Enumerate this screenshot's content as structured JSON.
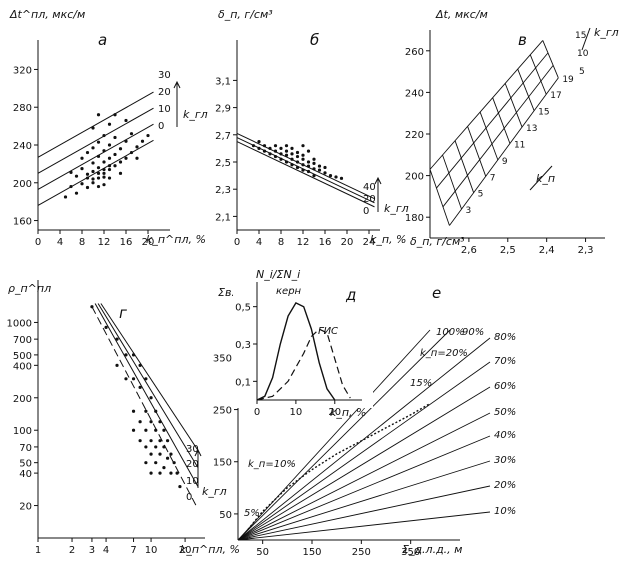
{
  "panels": {
    "a": {
      "letter": "а",
      "ylabel": "Δt^пл, мкс/м",
      "xlabel": "k_п^пл, %",
      "yticks": [
        "320",
        "280",
        "240",
        "200",
        "160"
      ],
      "xticks": [
        "0",
        "4",
        "8",
        "12",
        "16",
        "20"
      ],
      "line_labels": [
        "30",
        "20",
        "10",
        "0"
      ],
      "param": "k_гл"
    },
    "b": {
      "letter": "б",
      "ylabel": "δ_п, г/см³",
      "xlabel": "k_п, %",
      "yticks": [
        "3,1",
        "2,9",
        "2,7",
        "2,5",
        "2,3",
        "2,1"
      ],
      "xticks": [
        "0",
        "4",
        "8",
        "12",
        "16",
        "20",
        "24"
      ],
      "line_labels": [
        "40",
        "20",
        "0"
      ],
      "param": "k_гл"
    },
    "v": {
      "letter": "в",
      "ylabel": "Δt, мкс/м",
      "xlabel": "δ_п, г/см³",
      "yticks": [
        "260",
        "240",
        "220",
        "200",
        "180"
      ],
      "xticks": [
        "2,6",
        "2,5",
        "2,4",
        "2,3"
      ],
      "kgl_labels": [
        "15",
        "10",
        "5"
      ],
      "kp_labels": [
        "3",
        "5",
        "7",
        "9",
        "11",
        "13",
        "15",
        "17",
        "19"
      ],
      "param_kgl": "k_гл",
      "param_kp": "k_п"
    },
    "g": {
      "letter": "г",
      "ylabel": "ρ_п^пл",
      "xlabel": "k_п^пл, %",
      "yticks": [
        "1000",
        "700",
        "500",
        "400",
        "200",
        "100",
        "70",
        "50",
        "40",
        "20"
      ],
      "xticks": [
        "1",
        "2",
        "3",
        "4",
        "7",
        "10",
        "20"
      ],
      "line_labels": [
        "30",
        "20",
        "10",
        "0"
      ],
      "param": "k_гл"
    },
    "d": {
      "letter": "д",
      "ylabel": "N_i/ΣN_i",
      "xlabel": "k_п, %",
      "yticks": [
        "0,5",
        "0,3",
        "0,1"
      ],
      "xticks": [
        "0",
        "10",
        "20"
      ],
      "curve_labels": [
        "керн",
        "ГИС"
      ]
    },
    "e": {
      "letter": "е",
      "ylabel": "Σв.к., м",
      "xlabel": "Σ_д.л.д., м",
      "yticks": [
        "350",
        "250",
        "150",
        "50"
      ],
      "xticks": [
        "50",
        "150",
        "250",
        "350"
      ],
      "fan_labels": [
        "100%",
        "90%",
        "80%",
        "70%",
        "60%",
        "50%",
        "40%",
        "30%",
        "20%",
        "10%"
      ],
      "annotations": [
        "k_п=20%",
        "15%",
        "k_п=10%",
        "5%"
      ]
    }
  },
  "chart_data": [
    {
      "panel": "а",
      "type": "scatter",
      "x_label": "k_п^пл, %",
      "y_label": "Δt^пл, мкс/м",
      "xlim": [
        0,
        24
      ],
      "ylim": [
        150,
        330
      ],
      "lines": [
        {
          "name": "0",
          "x": [
            0,
            21
          ],
          "y": [
            176,
            245
          ]
        },
        {
          "name": "10",
          "x": [
            0,
            21
          ],
          "y": [
            193,
            262
          ]
        },
        {
          "name": "20",
          "x": [
            0,
            21
          ],
          "y": [
            210,
            279
          ]
        },
        {
          "name": "30",
          "x": [
            0,
            21
          ],
          "y": [
            227,
            296
          ]
        }
      ],
      "points": [
        [
          5,
          185
        ],
        [
          6,
          196
        ],
        [
          6,
          211
        ],
        [
          7,
          207
        ],
        [
          7,
          189
        ],
        [
          8,
          215
        ],
        [
          8,
          199
        ],
        [
          8,
          226
        ],
        [
          9,
          209
        ],
        [
          9,
          232
        ],
        [
          9,
          195
        ],
        [
          10,
          212
        ],
        [
          10,
          221
        ],
        [
          10,
          204
        ],
        [
          10,
          237
        ],
        [
          10,
          258
        ],
        [
          11,
          205
        ],
        [
          11,
          216
        ],
        [
          11,
          228
        ],
        [
          11,
          243
        ],
        [
          11,
          196
        ],
        [
          11,
          272
        ],
        [
          12,
          210
        ],
        [
          12,
          222
        ],
        [
          12,
          234
        ],
        [
          12,
          250
        ],
        [
          12,
          198
        ],
        [
          13,
          214
        ],
        [
          13,
          226
        ],
        [
          13,
          240
        ],
        [
          13,
          262
        ],
        [
          13,
          205
        ],
        [
          14,
          218
        ],
        [
          14,
          230
        ],
        [
          14,
          248
        ],
        [
          14,
          272
        ],
        [
          15,
          222
        ],
        [
          15,
          236
        ],
        [
          15,
          210
        ],
        [
          16,
          226
        ],
        [
          16,
          244
        ],
        [
          16,
          266
        ],
        [
          17,
          232
        ],
        [
          17,
          252
        ],
        [
          18,
          238
        ],
        [
          18,
          226
        ],
        [
          19,
          244
        ],
        [
          20,
          250
        ],
        [
          9,
          205
        ],
        [
          10,
          200
        ],
        [
          11,
          210
        ],
        [
          12,
          206
        ],
        [
          13,
          218
        ],
        [
          12,
          214
        ]
      ]
    },
    {
      "panel": "б",
      "type": "scatter",
      "x_label": "k_п, %",
      "y_label": "δ_п, г/см³",
      "xlim": [
        0,
        26
      ],
      "ylim": [
        2.0,
        3.25
      ],
      "lines": [
        {
          "name": "0",
          "x": [
            0,
            25
          ],
          "y": [
            2.71,
            2.23
          ]
        },
        {
          "name": "20",
          "x": [
            0,
            25
          ],
          "y": [
            2.68,
            2.2
          ]
        },
        {
          "name": "40",
          "x": [
            0,
            25
          ],
          "y": [
            2.65,
            2.17
          ]
        }
      ],
      "points": [
        [
          3,
          2.62
        ],
        [
          4,
          2.65
        ],
        [
          4,
          2.6
        ],
        [
          5,
          2.62
        ],
        [
          5,
          2.58
        ],
        [
          6,
          2.6
        ],
        [
          6,
          2.56
        ],
        [
          7,
          2.58
        ],
        [
          7,
          2.62
        ],
        [
          7,
          2.54
        ],
        [
          8,
          2.56
        ],
        [
          8,
          2.6
        ],
        [
          8,
          2.52
        ],
        [
          9,
          2.55
        ],
        [
          9,
          2.58
        ],
        [
          9,
          2.5
        ],
        [
          10,
          2.52
        ],
        [
          10,
          2.56
        ],
        [
          10,
          2.48
        ],
        [
          10,
          2.6
        ],
        [
          11,
          2.5
        ],
        [
          11,
          2.54
        ],
        [
          11,
          2.46
        ],
        [
          11,
          2.57
        ],
        [
          12,
          2.48
        ],
        [
          12,
          2.52
        ],
        [
          12,
          2.44
        ],
        [
          12,
          2.55
        ],
        [
          13,
          2.47
        ],
        [
          13,
          2.5
        ],
        [
          13,
          2.43
        ],
        [
          14,
          2.45
        ],
        [
          14,
          2.49
        ],
        [
          14,
          2.52
        ],
        [
          15,
          2.44
        ],
        [
          15,
          2.47
        ],
        [
          16,
          2.42
        ],
        [
          16,
          2.46
        ],
        [
          17,
          2.4
        ],
        [
          18,
          2.39
        ],
        [
          19,
          2.38
        ],
        [
          12,
          2.62
        ],
        [
          13,
          2.58
        ],
        [
          14,
          2.4
        ],
        [
          9,
          2.62
        ]
      ]
    },
    {
      "panel": "в",
      "type": "line",
      "x_label": "δ_п, г/см³",
      "y_label": "Δt, мкс/м",
      "xlim": [
        2.7,
        2.25
      ],
      "ylim": [
        170,
        270
      ],
      "grid": {
        "kgl_values": [
          0,
          5,
          10,
          15
        ],
        "kp_values": [
          1,
          3,
          5,
          7,
          9,
          11,
          13,
          15,
          17,
          19
        ]
      },
      "corners": {
        "kp1_kgl0": [
          2.65,
          176
        ],
        "kp19_kgl0": [
          2.37,
          247
        ],
        "kp1_kgl15": [
          2.7,
          203
        ],
        "kp19_kgl15": [
          2.41,
          265
        ]
      }
    },
    {
      "panel": "г",
      "type": "scatter",
      "x_label": "k_п^пл, %",
      "y_label": "ρ_п^пл",
      "xscale": "log",
      "yscale": "log",
      "xlim": [
        1,
        30
      ],
      "ylim": [
        10,
        2000
      ],
      "lines": [
        {
          "name": "0",
          "x": [
            3,
            25
          ],
          "y": [
            1400,
            20
          ]
        },
        {
          "name": "10",
          "x": [
            3.2,
            26
          ],
          "y": [
            1500,
            30
          ]
        },
        {
          "name": "20",
          "x": [
            3.4,
            26
          ],
          "y": [
            1500,
            45
          ]
        },
        {
          "name": "30",
          "x": [
            3.6,
            26
          ],
          "y": [
            1500,
            65
          ]
        }
      ],
      "points": [
        [
          3,
          1400
        ],
        [
          4,
          900
        ],
        [
          5,
          700
        ],
        [
          5,
          400
        ],
        [
          6,
          500
        ],
        [
          6,
          300
        ],
        [
          7,
          500
        ],
        [
          7,
          300
        ],
        [
          7,
          150
        ],
        [
          7,
          100
        ],
        [
          8,
          400
        ],
        [
          8,
          250
        ],
        [
          8,
          120
        ],
        [
          8,
          80
        ],
        [
          9,
          300
        ],
        [
          9,
          150
        ],
        [
          9,
          100
        ],
        [
          9,
          70
        ],
        [
          9,
          50
        ],
        [
          10,
          200
        ],
        [
          10,
          120
        ],
        [
          10,
          80
        ],
        [
          10,
          60
        ],
        [
          10,
          40
        ],
        [
          11,
          150
        ],
        [
          11,
          100
        ],
        [
          11,
          70
        ],
        [
          11,
          50
        ],
        [
          12,
          120
        ],
        [
          12,
          80
        ],
        [
          12,
          60
        ],
        [
          12,
          40
        ],
        [
          13,
          100
        ],
        [
          13,
          70
        ],
        [
          13,
          45
        ],
        [
          14,
          80
        ],
        [
          14,
          55
        ],
        [
          15,
          60
        ],
        [
          15,
          40
        ],
        [
          16,
          50
        ],
        [
          17,
          40
        ],
        [
          18,
          30
        ]
      ]
    },
    {
      "panel": "д",
      "type": "line",
      "x_label": "k_п, %",
      "y_label": "N_i/ΣN_i",
      "xlim": [
        0,
        27
      ],
      "ylim": [
        0,
        0.6
      ],
      "series": [
        {
          "name": "керн",
          "x": [
            0,
            2,
            4,
            6,
            8,
            10,
            12,
            14,
            16,
            18,
            20
          ],
          "y": [
            0,
            0.02,
            0.12,
            0.3,
            0.45,
            0.52,
            0.5,
            0.38,
            0.2,
            0.06,
            0
          ]
        },
        {
          "name": "ГИС",
          "x": [
            0,
            4,
            8,
            12,
            14,
            16,
            18,
            20,
            22,
            24
          ],
          "y": [
            0,
            0.02,
            0.1,
            0.25,
            0.34,
            0.38,
            0.36,
            0.22,
            0.08,
            0.01
          ]
        }
      ]
    },
    {
      "panel": "е",
      "type": "line",
      "x_label": "Σ_д.л.д., м",
      "y_label": "Σв.к., м",
      "xlim": [
        0,
        450
      ],
      "ylim": [
        0,
        460
      ],
      "fan_percent": [
        10,
        20,
        30,
        40,
        50,
        60,
        70,
        80,
        90,
        100
      ],
      "measured_curve": {
        "x": [
          20,
          50,
          100,
          150,
          200,
          250,
          300,
          350,
          390
        ],
        "y": [
          20,
          55,
          100,
          135,
          165,
          190,
          215,
          240,
          262
        ]
      }
    }
  ]
}
